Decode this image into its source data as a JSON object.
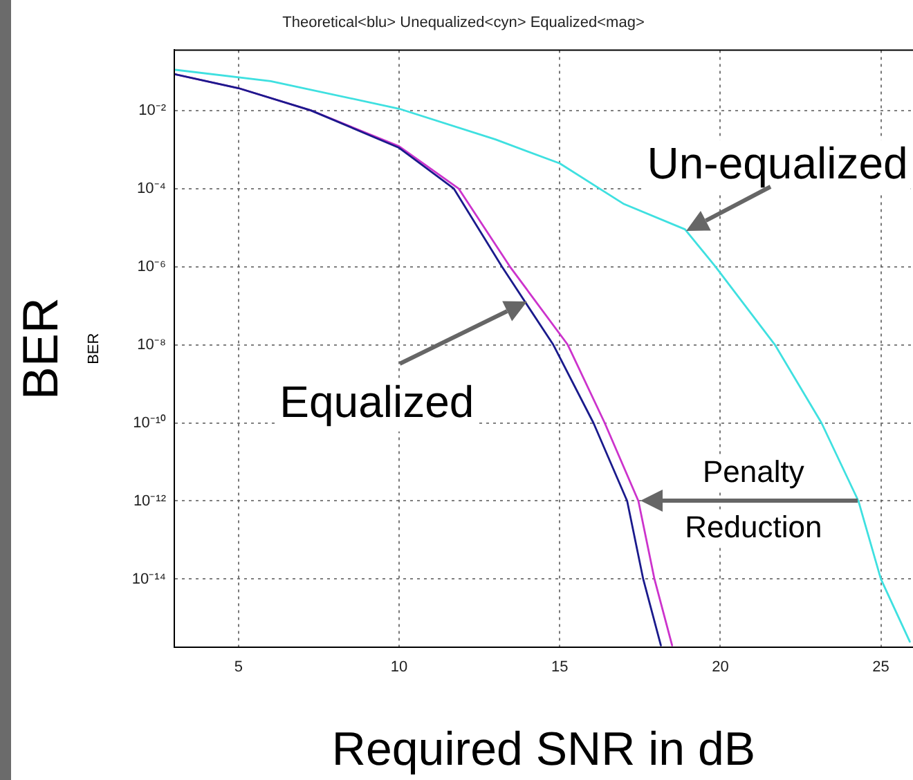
{
  "chart_data": {
    "type": "line",
    "title": "Theoretical<blu> Unequalized<cyn> Equalized<mag>",
    "xlabel": "Required SNR in dB",
    "ylabel": "BER",
    "log": "y",
    "grid": true,
    "legend": false,
    "marker": "none",
    "line_style": "solid",
    "xlim": [
      3,
      26
    ],
    "xticks": [
      5,
      10,
      15,
      20,
      25
    ],
    "ylim": [
      1.8e-16,
      0.35
    ],
    "yticks": [
      {
        "value": 0.01,
        "label": "10⁻²"
      },
      {
        "value": 0.0001,
        "label": "10⁻⁴"
      },
      {
        "value": 1e-06,
        "label": "10⁻⁶"
      },
      {
        "value": 1e-08,
        "label": "10⁻⁸"
      },
      {
        "value": 1e-10,
        "label": "10⁻¹⁰"
      },
      {
        "value": 1e-12,
        "label": "10⁻¹²"
      },
      {
        "value": 1e-14,
        "label": "10⁻¹⁴"
      }
    ],
    "series": [
      {
        "color": "#1a1a8c",
        "x": [
          3,
          5,
          7.25,
          10,
          11.7,
          13.2,
          14.8,
          16.05,
          17.1,
          17.6,
          18.15
        ],
        "values": [
          0.085,
          0.037,
          0.01,
          0.0011,
          0.0001,
          1e-06,
          1e-08,
          1e-10,
          1e-12,
          1e-14,
          2e-16
        ]
      },
      {
        "color": "#3fe0e0",
        "x": [
          3,
          6,
          10,
          13,
          15,
          17,
          18.9,
          19.85,
          21.7,
          23.15,
          24.3,
          25,
          25.9
        ],
        "values": [
          0.11,
          0.056,
          0.011,
          0.0018,
          0.00044,
          4e-05,
          9e-06,
          1e-06,
          1e-08,
          1e-10,
          1e-12,
          1e-14,
          2.5e-16
        ]
      },
      {
        "color": "#cc33cc",
        "x": [
          3,
          5,
          7.25,
          10,
          11.85,
          13.45,
          15.25,
          16.4,
          17.45,
          17.95,
          18.5
        ],
        "values": [
          0.085,
          0.037,
          0.01,
          0.0012,
          0.0001,
          1e-06,
          1e-08,
          1e-10,
          1e-12,
          1e-14,
          2e-16
        ]
      }
    ],
    "annotations": [
      {
        "text": "Un-equalized",
        "x": 18.95,
        "y": 8e-06
      },
      {
        "text": "Equalized",
        "x": 14,
        "y": 1.3e-07
      },
      {
        "text": "Penalty Reduction",
        "x": 17.5,
        "y": 1e-12
      },
      "BER"
    ]
  }
}
